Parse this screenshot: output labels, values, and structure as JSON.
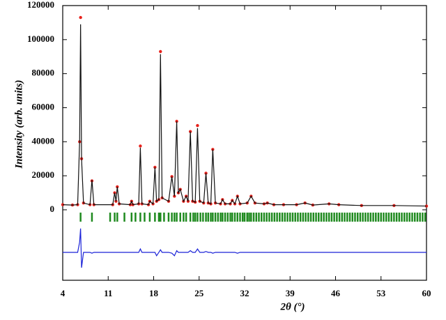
{
  "chart_data": {
    "type": "line",
    "y_label": "Intensity (arb. units)",
    "x_label": "2θ (°)",
    "xlim": [
      4,
      60
    ],
    "xticks": [
      4,
      11,
      18,
      25,
      32,
      39,
      46,
      53,
      60
    ],
    "ylim": [
      -41400,
      120000
    ],
    "yticks": [
      0,
      20000,
      40000,
      60000,
      80000,
      100000,
      120000
    ],
    "x": [
      4.0,
      5.5,
      6.3,
      6.6,
      6.75,
      6.9,
      7.2,
      8.2,
      8.5,
      8.8,
      11.7,
      12.0,
      12.2,
      12.4,
      12.7,
      14.4,
      14.6,
      14.8,
      15.7,
      15.95,
      16.2,
      17.2,
      17.4,
      17.9,
      18.2,
      18.45,
      18.8,
      19.05,
      19.3,
      20.3,
      20.8,
      21.2,
      21.55,
      21.8,
      22.1,
      22.6,
      23.0,
      23.3,
      23.65,
      24.0,
      24.4,
      24.75,
      25.1,
      25.7,
      26.05,
      26.4,
      26.8,
      27.1,
      27.5,
      28.3,
      28.6,
      29.0,
      29.8,
      30.1,
      30.5,
      30.9,
      31.3,
      32.4,
      33.0,
      33.6,
      35.0,
      35.5,
      36.5,
      38.0,
      40.0,
      41.3,
      42.5,
      45.0,
      46.5,
      50.0,
      55.0,
      60.0
    ],
    "series": [
      {
        "style": "line",
        "color": "#1a22d8",
        "values": [
          -25000,
          -25000,
          -25000,
          -19000,
          -11000,
          -34000,
          -25000,
          -25000,
          -25500,
          -25000,
          -25000,
          -25000,
          -25000,
          -25000,
          -25000,
          -25000,
          -25000,
          -25000,
          -25000,
          -23000,
          -25000,
          -25000,
          -25000,
          -25000,
          -25000,
          -27000,
          -25000,
          -23500,
          -25000,
          -25000,
          -25500,
          -27000,
          -24000,
          -25000,
          -25000,
          -25000,
          -25000,
          -25000,
          -24000,
          -25000,
          -25000,
          -23000,
          -25000,
          -25000,
          -24500,
          -25000,
          -25000,
          -25500,
          -25000,
          -25000,
          -25000,
          -25000,
          -25000,
          -25000,
          -25000,
          -25500,
          -25000,
          -25000,
          -25000,
          -25000,
          -25000,
          -25000,
          -25000,
          -25000,
          -25000,
          -25000,
          -25000,
          -25000,
          -25000,
          -25000,
          -25000,
          -25000
        ]
      },
      {
        "style": "points",
        "color": "#e8221c",
        "values": [
          3000,
          2800,
          3000,
          40000,
          113000,
          30000,
          4000,
          3000,
          17000,
          3000,
          3000,
          10000,
          5000,
          13500,
          3500,
          3000,
          5000,
          3000,
          3500,
          37500,
          3500,
          3000,
          5000,
          3500,
          25000,
          5000,
          6000,
          93000,
          7000,
          5000,
          19500,
          8000,
          52000,
          10000,
          12000,
          5000,
          8000,
          5000,
          46000,
          5000,
          4500,
          49500,
          5000,
          4000,
          21500,
          4000,
          3500,
          35500,
          4000,
          3500,
          6000,
          3500,
          3500,
          5500,
          3500,
          8000,
          3500,
          4000,
          8000,
          4000,
          3500,
          4000,
          3000,
          3000,
          3000,
          4000,
          2800,
          3500,
          3000,
          2500,
          2500,
          2200
        ]
      },
      {
        "style": "line",
        "color": "#111111",
        "values": [
          3000,
          2800,
          3000,
          40000,
          109000,
          30000,
          4000,
          3000,
          17500,
          3000,
          3000,
          10000,
          5000,
          13500,
          3500,
          3000,
          5000,
          3000,
          3500,
          36500,
          3500,
          3000,
          5000,
          3500,
          25000,
          5000,
          6000,
          91500,
          7000,
          5000,
          19500,
          8000,
          52000,
          10000,
          12000,
          5000,
          8000,
          5000,
          46000,
          5000,
          4500,
          48000,
          5000,
          4000,
          21500,
          4000,
          3500,
          35500,
          4000,
          3500,
          6000,
          3500,
          3500,
          5500,
          3500,
          8000,
          3500,
          4000,
          8000,
          4000,
          3500,
          4000,
          3000,
          3000,
          3000,
          4000,
          2800,
          3500,
          3000,
          2500,
          2500,
          2200
        ]
      }
    ],
    "bragg_color": "#1f8a1f",
    "bragg_positions": [
      6.75,
      8.5,
      11.3,
      12.0,
      12.4,
      13.5,
      14.6,
      15.2,
      15.95,
      16.6,
      17.4,
      18.2,
      18.8,
      19.05,
      19.6,
      20.3,
      20.8,
      21.2,
      21.55,
      22.1,
      22.6,
      23.0,
      23.65,
      24.1,
      24.4,
      24.75,
      25.2,
      25.6,
      26.05,
      26.4,
      26.8,
      27.1,
      27.5,
      27.9,
      28.3,
      28.6,
      29.0,
      29.4,
      29.8,
      30.1,
      30.5,
      30.9,
      31.3,
      31.7,
      32.0,
      32.4,
      32.7,
      33.0,
      33.4,
      33.8,
      34.2,
      34.6,
      35.0,
      35.4,
      35.8,
      36.2,
      36.6,
      37.0,
      37.4,
      37.8,
      38.2,
      38.6,
      39.0,
      39.4,
      39.8,
      40.2,
      40.6,
      41.0,
      41.4,
      41.8,
      42.2,
      42.6,
      43.0,
      43.4,
      43.8,
      44.2,
      44.6,
      45.0,
      45.4,
      45.8,
      46.2,
      46.6,
      47.0,
      47.4,
      47.8,
      48.2,
      48.6,
      49.0,
      49.4,
      49.8,
      50.2,
      50.6,
      51.0,
      51.4,
      51.8,
      52.2,
      52.6,
      53.0,
      53.4,
      53.8,
      54.2,
      54.6,
      55.0,
      55.4,
      55.8,
      56.2,
      56.6,
      57.0,
      57.4,
      57.8,
      58.2,
      58.6,
      59.0,
      59.4,
      59.8
    ]
  }
}
